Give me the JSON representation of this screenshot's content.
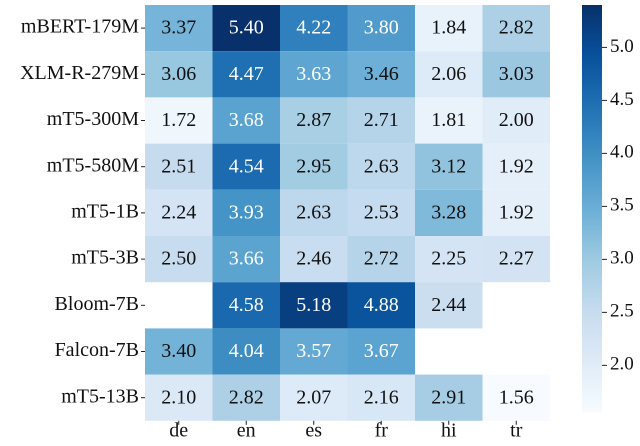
{
  "chart_data": {
    "type": "heatmap",
    "title": "",
    "xlabel": "",
    "ylabel": "",
    "columns": [
      "de",
      "en",
      "es",
      "fr",
      "hi",
      "tr"
    ],
    "rows": [
      "mBERT-179M",
      "XLM-R-279M",
      "mT5-300M",
      "mT5-580M",
      "mT5-1B",
      "mT5-3B",
      "Bloom-7B",
      "Falcon-7B",
      "mT5-13B"
    ],
    "values": [
      [
        3.37,
        5.4,
        4.22,
        3.8,
        1.84,
        2.82
      ],
      [
        3.06,
        4.47,
        3.63,
        3.46,
        2.06,
        3.03
      ],
      [
        1.72,
        3.68,
        2.87,
        2.71,
        1.81,
        2.0
      ],
      [
        2.51,
        4.54,
        2.95,
        2.63,
        3.12,
        1.92
      ],
      [
        2.24,
        3.93,
        2.63,
        2.53,
        3.28,
        1.92
      ],
      [
        2.5,
        3.66,
        2.46,
        2.72,
        2.25,
        2.27
      ],
      [
        null,
        4.58,
        5.18,
        4.88,
        2.44,
        null
      ],
      [
        3.4,
        4.04,
        3.57,
        3.67,
        null,
        null
      ],
      [
        2.1,
        2.82,
        2.07,
        2.16,
        2.91,
        1.56
      ]
    ],
    "display_values": [
      [
        "3.37",
        "5.40",
        "4.22",
        "3.80",
        "1.84",
        "2.82"
      ],
      [
        "3.06",
        "4.47",
        "3.63",
        "3.46",
        "2.06",
        "3.03"
      ],
      [
        "1.72",
        "3.68",
        "2.87",
        "2.71",
        "1.81",
        "2.00"
      ],
      [
        "2.51",
        "4.54",
        "2.95",
        "2.63",
        "3.12",
        "1.92"
      ],
      [
        "2.24",
        "3.93",
        "2.63",
        "2.53",
        "3.28",
        "1.92"
      ],
      [
        "2.50",
        "3.66",
        "2.46",
        "2.72",
        "2.25",
        "2.27"
      ],
      [
        "",
        "4.58",
        "5.18",
        "4.88",
        "2.44",
        ""
      ],
      [
        "3.40",
        "4.04",
        "3.57",
        "3.67",
        "",
        ""
      ],
      [
        "2.10",
        "2.82",
        "2.07",
        "2.16",
        "2.91",
        "1.56"
      ]
    ],
    "colorbar": {
      "range": [
        1.56,
        5.4
      ],
      "ticks": [
        2.0,
        2.5,
        3.0,
        3.5,
        4.0,
        4.5,
        5.0
      ],
      "tick_labels": [
        "2.0",
        "2.5",
        "3.0",
        "3.5",
        "4.0",
        "4.5",
        "5.0"
      ],
      "colormap": "Blues"
    },
    "colors": {
      "low": "#f7fbff",
      "high": "#08306b",
      "text_dark": "#111111",
      "text_light": "#ffffff"
    }
  }
}
